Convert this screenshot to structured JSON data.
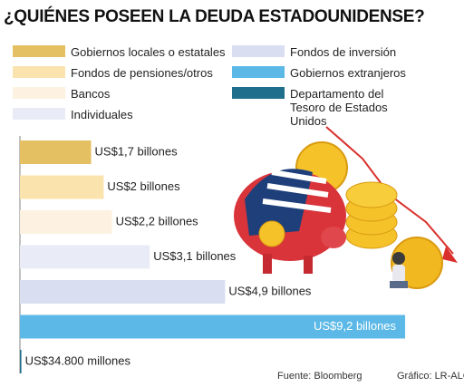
{
  "title": "¿QUIÉNES POSEEN LA DEUDA ESTADOUNIDENSE?",
  "chart_data": {
    "type": "bar",
    "orientation": "horizontal",
    "categories": [
      "Gobiernos locales o estatales",
      "Fondos de pensiones/otros",
      "Bancos",
      "Individuales",
      "Fondos de inversión",
      "Gobiernos extranjeros",
      "Departamento del Tesoro de Estados Unidos"
    ],
    "values": [
      1.7,
      2,
      2.2,
      3.1,
      4.9,
      9.2,
      0.0348
    ],
    "value_labels": [
      "US$1,7 billones",
      "US$2 billones",
      "US$2,2 billones",
      "US$3,1 billones",
      "US$4,9 billones",
      "US$9,2 billones",
      "US$34.800 millones"
    ],
    "colors": [
      "#e5c062",
      "#fbe3ae",
      "#fdf2e1",
      "#e9ecf6",
      "#d9dff1",
      "#5cb9e7",
      "#1f6e8c"
    ]
  },
  "footer": {
    "source": "Fuente: Bloomberg",
    "credit": "Gráfico: LR-ALG"
  }
}
